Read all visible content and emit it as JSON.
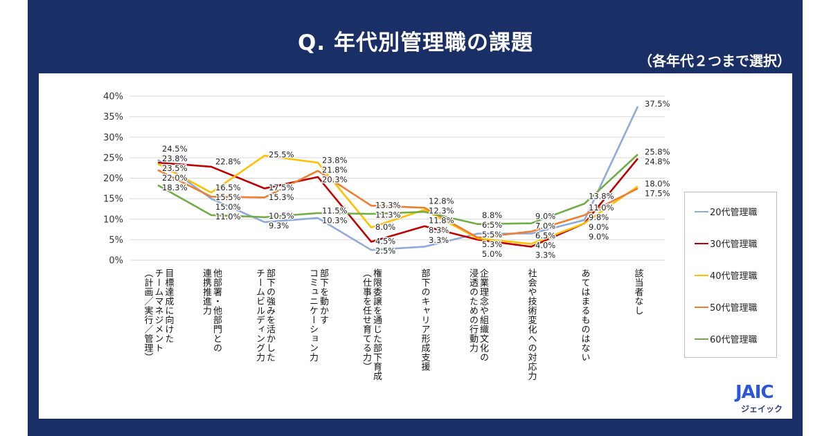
{
  "header": {
    "title": "Q. 年代別管理職の課題",
    "subtitle": "（各年代２つまで選択）"
  },
  "brand": {
    "logo_text": "JAIC",
    "logo_kana": "ジェイック",
    "colors": {
      "navy": "#1a2f66",
      "logo_blue": "#2a56d9"
    }
  },
  "chart_data": {
    "type": "line",
    "title": "Q. 年代別管理職の課題",
    "subtitle": "（各年代２つまで選択）",
    "xlabel": "",
    "ylabel": "",
    "ylim": [
      0,
      40
    ],
    "yticks": [
      0,
      5,
      10,
      15,
      20,
      25,
      30,
      35,
      40
    ],
    "ytick_labels": [
      "0%",
      "5%",
      "10%",
      "15%",
      "20%",
      "25%",
      "30%",
      "35%",
      "40%"
    ],
    "grid": true,
    "legend_position": "right",
    "categories": [
      "目標達成に向けた\nチームマネジメント\n（計画／実行／管理）",
      "他部署・他部門との\n連携推進力",
      "部下の強みを活かした\nチームビルディング力",
      "部下を動かす\nコミュニケーション力",
      "権限委譲を通じた部下育成\n（仕事を任せ育てる力）",
      "部下のキャリア形成支援",
      "企業理念や組織文化の\n浸透のための行動力",
      "社会や技術変化への対応力",
      "あてはまるものはない",
      "該当者なし"
    ],
    "series": [
      {
        "name": "20代管理職",
        "color": "#8eaadb",
        "values": [
          24.5,
          15.0,
          9.3,
          10.3,
          2.5,
          3.3,
          6.5,
          6.5,
          9.8,
          37.5
        ]
      },
      {
        "name": "30代管理職",
        "color": "#c00000",
        "values": [
          23.8,
          22.8,
          17.5,
          20.3,
          4.5,
          8.3,
          5.0,
          3.3,
          9.0,
          24.8
        ]
      },
      {
        "name": "40代管理職",
        "color": "#ffc000",
        "values": [
          23.5,
          16.5,
          25.5,
          23.8,
          8.0,
          12.3,
          5.3,
          4.0,
          9.0,
          18.0
        ]
      },
      {
        "name": "50代管理職",
        "color": "#ed7d31",
        "values": [
          22.0,
          15.5,
          15.3,
          21.8,
          13.3,
          12.8,
          5.5,
          7.0,
          11.0,
          17.5
        ]
      },
      {
        "name": "60代管理職",
        "color": "#70ad47",
        "values": [
          18.3,
          11.0,
          10.5,
          11.5,
          11.3,
          11.8,
          8.8,
          9.0,
          13.8,
          25.8
        ]
      }
    ],
    "value_suffix": "%"
  }
}
